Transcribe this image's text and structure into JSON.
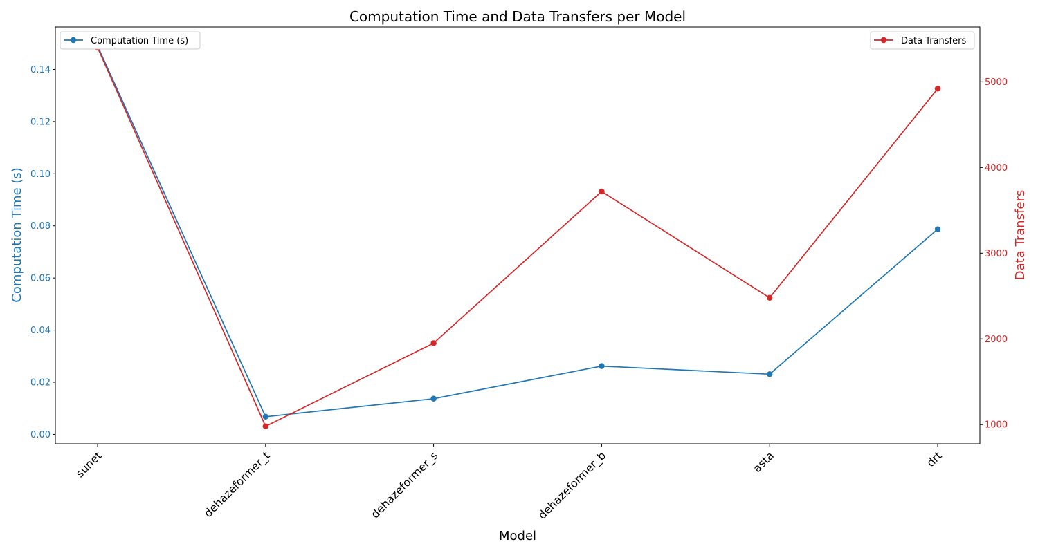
{
  "chart_data": {
    "type": "line",
    "title": "Computation Time and Data Transfers per Model",
    "xlabel": "Model",
    "categories": [
      "sunet",
      "dehazeformer_t",
      "dehazeformer_s",
      "dehazeformer_b",
      "asta",
      "drt"
    ],
    "left_axis": {
      "label": "Computation Time (s)",
      "color": "#1f77b4",
      "ticks": [
        "0.00",
        "0.02",
        "0.04",
        "0.06",
        "0.08",
        "0.10",
        "0.12",
        "0.14"
      ],
      "ylim": [
        -0.0036,
        0.1563
      ]
    },
    "right_axis": {
      "label": "Data Transfers",
      "color": "#d62728",
      "ticks": [
        "1000",
        "2000",
        "3000",
        "4000",
        "5000"
      ],
      "ylim": [
        776,
        5640
      ]
    },
    "series": [
      {
        "name": "Computation Time (s)",
        "axis": "left",
        "color": "#1f77b4",
        "values": [
          0.149,
          0.0068,
          0.0137,
          0.0262,
          0.0231,
          0.0787
        ]
      },
      {
        "name": "Data Transfers",
        "axis": "right",
        "color": "#d62728",
        "values": [
          5400,
          980,
          1950,
          3720,
          2480,
          4920
        ]
      }
    ],
    "legend": [
      "top-left",
      "top-right"
    ],
    "grid": false
  }
}
